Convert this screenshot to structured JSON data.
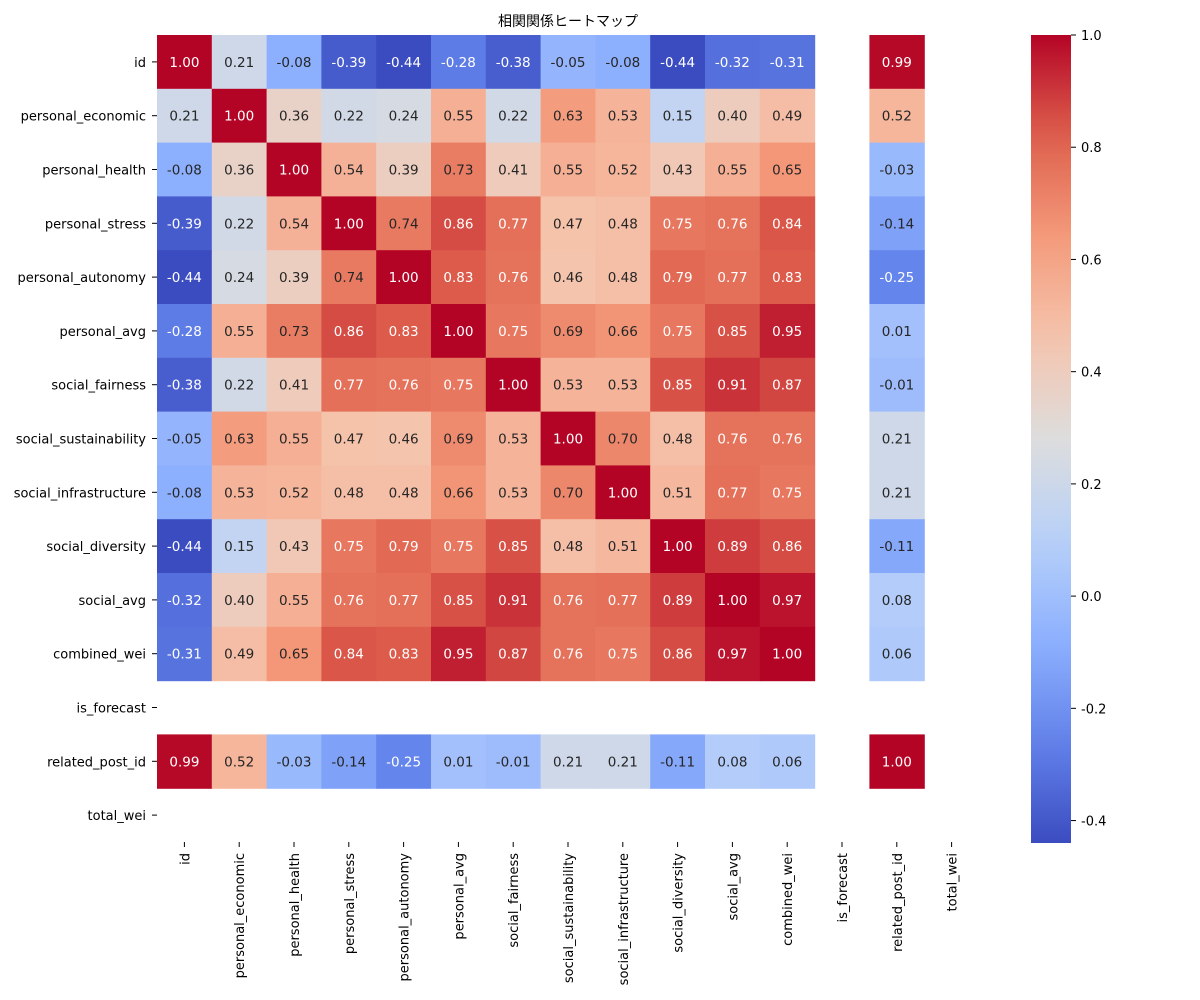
{
  "chart_data": {
    "type": "heatmap",
    "title": "相関関係ヒートマップ",
    "xlabel": "",
    "ylabel": "",
    "labels": [
      "id",
      "personal_economic",
      "personal_health",
      "personal_stress",
      "personal_autonomy",
      "personal_avg",
      "social_fairness",
      "social_sustainability",
      "social_infrastructure",
      "social_diversity",
      "social_avg",
      "combined_wei",
      "is_forecast",
      "related_post_id",
      "total_wei"
    ],
    "matrix": [
      [
        1.0,
        0.21,
        -0.08,
        -0.39,
        -0.44,
        -0.28,
        -0.38,
        -0.05,
        -0.08,
        -0.44,
        -0.32,
        -0.31,
        null,
        0.99,
        null
      ],
      [
        0.21,
        1.0,
        0.36,
        0.22,
        0.24,
        0.55,
        0.22,
        0.63,
        0.53,
        0.15,
        0.4,
        0.49,
        null,
        0.52,
        null
      ],
      [
        -0.08,
        0.36,
        1.0,
        0.54,
        0.39,
        0.73,
        0.41,
        0.55,
        0.52,
        0.43,
        0.55,
        0.65,
        null,
        -0.03,
        null
      ],
      [
        -0.39,
        0.22,
        0.54,
        1.0,
        0.74,
        0.86,
        0.77,
        0.47,
        0.48,
        0.75,
        0.76,
        0.84,
        null,
        -0.14,
        null
      ],
      [
        -0.44,
        0.24,
        0.39,
        0.74,
        1.0,
        0.83,
        0.76,
        0.46,
        0.48,
        0.79,
        0.77,
        0.83,
        null,
        -0.25,
        null
      ],
      [
        -0.28,
        0.55,
        0.73,
        0.86,
        0.83,
        1.0,
        0.75,
        0.69,
        0.66,
        0.75,
        0.85,
        0.95,
        null,
        0.01,
        null
      ],
      [
        -0.38,
        0.22,
        0.41,
        0.77,
        0.76,
        0.75,
        1.0,
        0.53,
        0.53,
        0.85,
        0.91,
        0.87,
        null,
        -0.01,
        null
      ],
      [
        -0.05,
        0.63,
        0.55,
        0.47,
        0.46,
        0.69,
        0.53,
        1.0,
        0.7,
        0.48,
        0.76,
        0.76,
        null,
        0.21,
        null
      ],
      [
        -0.08,
        0.53,
        0.52,
        0.48,
        0.48,
        0.66,
        0.53,
        0.7,
        1.0,
        0.51,
        0.77,
        0.75,
        null,
        0.21,
        null
      ],
      [
        -0.44,
        0.15,
        0.43,
        0.75,
        0.79,
        0.75,
        0.85,
        0.48,
        0.51,
        1.0,
        0.89,
        0.86,
        null,
        -0.11,
        null
      ],
      [
        -0.32,
        0.4,
        0.55,
        0.76,
        0.77,
        0.85,
        0.91,
        0.76,
        0.77,
        0.89,
        1.0,
        0.97,
        null,
        0.08,
        null
      ],
      [
        -0.31,
        0.49,
        0.65,
        0.84,
        0.83,
        0.95,
        0.87,
        0.76,
        0.75,
        0.86,
        0.97,
        1.0,
        null,
        0.06,
        null
      ],
      [
        null,
        null,
        null,
        null,
        null,
        null,
        null,
        null,
        null,
        null,
        null,
        null,
        null,
        null,
        null
      ],
      [
        0.99,
        0.52,
        -0.03,
        -0.14,
        -0.25,
        0.01,
        -0.01,
        0.21,
        0.21,
        -0.11,
        0.08,
        0.06,
        null,
        1.0,
        null
      ],
      [
        null,
        null,
        null,
        null,
        null,
        null,
        null,
        null,
        null,
        null,
        null,
        null,
        null,
        null,
        null
      ]
    ],
    "colormap": "coolwarm",
    "vmin": -0.44,
    "vmax": 1.0,
    "colorbar_ticks": [
      1.0,
      0.8,
      0.6,
      0.4,
      0.2,
      0.0,
      -0.2,
      -0.4
    ],
    "colorbar_tick_labels": [
      "1.0",
      "0.8",
      "0.6",
      "0.4",
      "0.2",
      "0.0",
      "-0.2",
      "-0.4"
    ],
    "annotation_format": "0.00",
    "grid": false,
    "legend": "colorbar-right"
  }
}
